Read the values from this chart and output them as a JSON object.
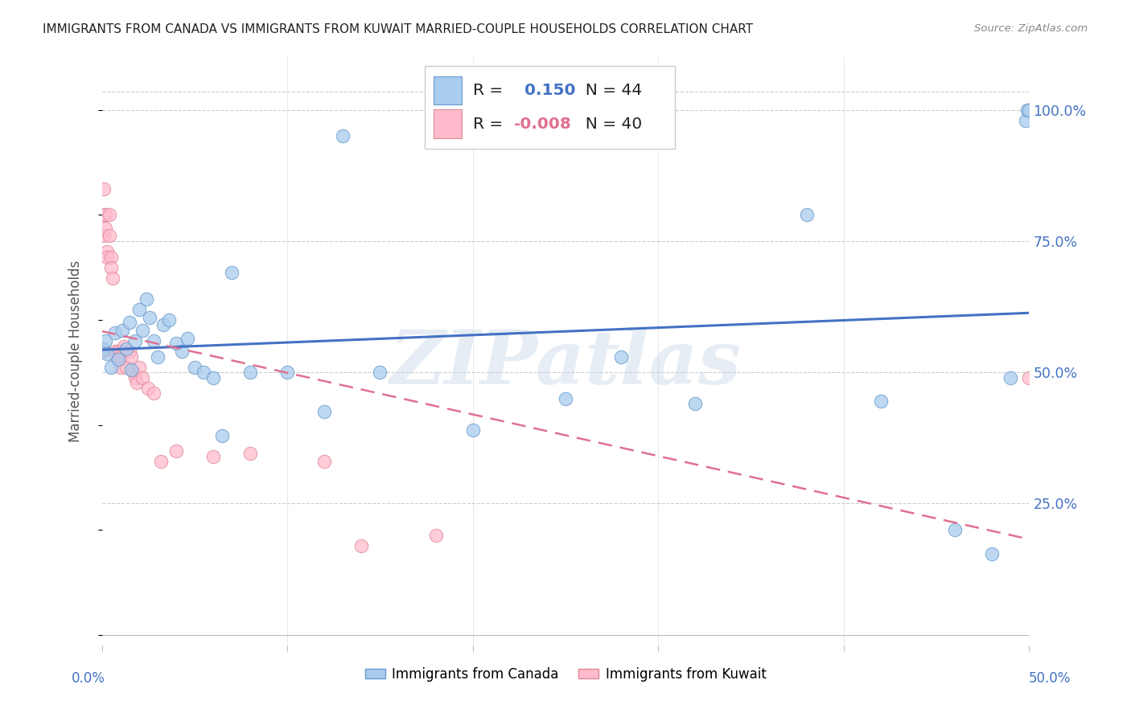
{
  "title": "IMMIGRANTS FROM CANADA VS IMMIGRANTS FROM KUWAIT MARRIED-COUPLE HOUSEHOLDS CORRELATION CHART",
  "source": "Source: ZipAtlas.com",
  "ylabel": "Married-couple Households",
  "xlim": [
    0.0,
    0.5
  ],
  "ylim": [
    -0.02,
    1.1
  ],
  "yticks": [
    0.25,
    0.5,
    0.75,
    1.0
  ],
  "ytick_labels": [
    "25.0%",
    "50.0%",
    "75.0%",
    "100.0%"
  ],
  "canada_R": "0.150",
  "canada_N": "44",
  "kuwait_R": "-0.008",
  "kuwait_N": "40",
  "canada_dot_color": "#aaccee",
  "canada_edge_color": "#6699cc",
  "kuwait_dot_color": "#ffbbcc",
  "kuwait_edge_color": "#dd8899",
  "canada_line_color": "#4472c4",
  "kuwait_line_color": "#e07090",
  "legend_R_color": "#4472c4",
  "canada_points_x": [
    0.001,
    0.002,
    0.003,
    0.005,
    0.007,
    0.009,
    0.011,
    0.013,
    0.015,
    0.016,
    0.018,
    0.02,
    0.022,
    0.024,
    0.026,
    0.028,
    0.03,
    0.033,
    0.036,
    0.04,
    0.043,
    0.046,
    0.05,
    0.055,
    0.06,
    0.065,
    0.07,
    0.08,
    0.1,
    0.12,
    0.13,
    0.15,
    0.2,
    0.25,
    0.28,
    0.32,
    0.38,
    0.42,
    0.46,
    0.48,
    0.49,
    0.498,
    0.499,
    0.5
  ],
  "canada_points_y": [
    0.545,
    0.56,
    0.535,
    0.51,
    0.575,
    0.525,
    0.58,
    0.545,
    0.595,
    0.505,
    0.56,
    0.62,
    0.58,
    0.64,
    0.605,
    0.56,
    0.53,
    0.59,
    0.6,
    0.555,
    0.54,
    0.565,
    0.51,
    0.5,
    0.49,
    0.38,
    0.69,
    0.5,
    0.5,
    0.425,
    0.95,
    0.5,
    0.39,
    0.45,
    0.53,
    0.44,
    0.8,
    0.445,
    0.2,
    0.155,
    0.49,
    0.98,
    1.0,
    1.0
  ],
  "kuwait_points_x": [
    0.0003,
    0.0005,
    0.0008,
    0.001,
    0.001,
    0.001,
    0.002,
    0.002,
    0.003,
    0.003,
    0.004,
    0.004,
    0.005,
    0.005,
    0.006,
    0.007,
    0.008,
    0.009,
    0.01,
    0.01,
    0.011,
    0.012,
    0.013,
    0.015,
    0.016,
    0.017,
    0.018,
    0.019,
    0.02,
    0.022,
    0.025,
    0.028,
    0.032,
    0.04,
    0.06,
    0.08,
    0.12,
    0.14,
    0.18,
    0.5
  ],
  "kuwait_points_y": [
    0.54,
    0.545,
    0.54,
    0.85,
    0.8,
    0.76,
    0.8,
    0.775,
    0.73,
    0.72,
    0.8,
    0.76,
    0.72,
    0.7,
    0.68,
    0.54,
    0.53,
    0.54,
    0.53,
    0.51,
    0.54,
    0.55,
    0.51,
    0.54,
    0.53,
    0.5,
    0.49,
    0.48,
    0.51,
    0.49,
    0.47,
    0.46,
    0.33,
    0.35,
    0.34,
    0.345,
    0.33,
    0.17,
    0.19,
    0.49
  ],
  "watermark_text": "ZIPatlas",
  "background_color": "#ffffff",
  "grid_color": "#cccccc",
  "axis_tick_color": "#4472c4"
}
